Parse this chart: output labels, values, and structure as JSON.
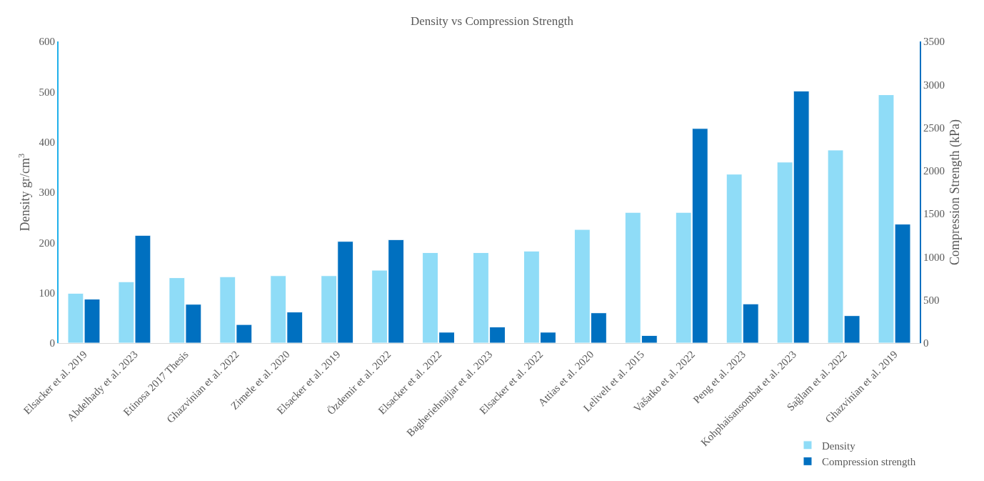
{
  "chart_data": {
    "type": "bar",
    "title": "Density vs Compression Strength",
    "ylabel": "Density gr/cm$^{3}$",
    "y2label": "Compression Strength (kPa)",
    "categories": [
      "Elsacker et al. 2019",
      "Abdelhady et al. 2023",
      "Etinosa 2017 Thesis",
      "Ghazvinian et al. 2022",
      "Zimele et al. 2020",
      "Elsacker et al. 2019",
      "Özdemir et al. 2022",
      "Elsacker et al. 2022",
      "Bagheriehnajjar et al. 2023",
      "Elsacker et al. 2022",
      "Attias et al. 2020",
      "Lelivelt et al. 2015",
      "Vašatko et al. 2022",
      "Peng et al. 2023",
      "Kohphaisansombat et al. 2023",
      "Sağlam et al. 2022",
      "Ghazvinian et al. 2019"
    ],
    "series": [
      {
        "name": "Density",
        "color": "#8fdcf7",
        "values": [
          99,
          122,
          130,
          132,
          134,
          134,
          145,
          180,
          180,
          183,
          226,
          260,
          260,
          336,
          360,
          384,
          494
        ]
      },
      {
        "name": "Compression strength",
        "color": "#0070c0",
        "axis": "y2",
        "values": [
          510,
          1250,
          450,
          215,
          360,
          1180,
          1200,
          126,
          187,
          126,
          351,
          88,
          2490,
          455,
          2925,
          318,
          1380
        ]
      }
    ],
    "ylim": [
      0,
      600
    ],
    "yticks": [
      0,
      100,
      200,
      300,
      400,
      500,
      600
    ],
    "y2lim": [
      0,
      3500
    ],
    "y2ticks": [
      0,
      500,
      1000,
      1500,
      2000,
      2500,
      3000,
      3500
    ],
    "legend": "bottom right"
  }
}
